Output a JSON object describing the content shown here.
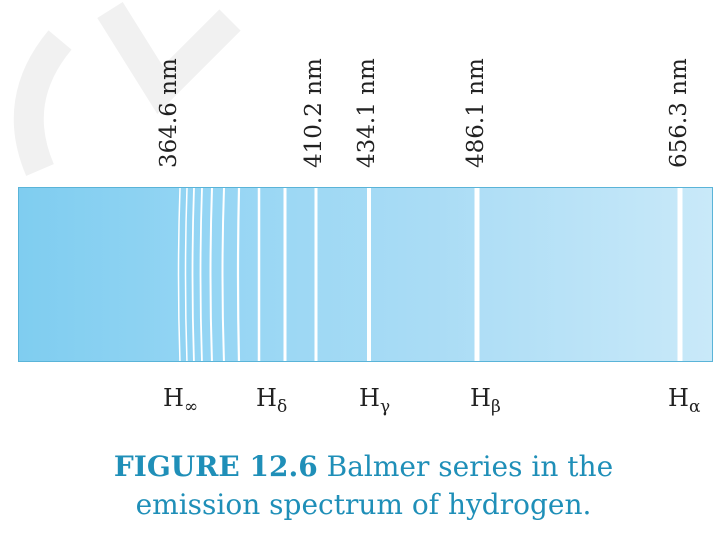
{
  "watermark": {
    "color": "#f1f1f1"
  },
  "wavelengths": [
    "364.6 nm",
    "410.2 nm",
    "434.1 nm",
    "486.1 nm",
    "656.3 nm"
  ],
  "series_labels": [
    {
      "base": "H",
      "sub": "∞"
    },
    {
      "base": "H",
      "sub": "δ"
    },
    {
      "base": "H",
      "sub": "γ"
    },
    {
      "base": "H",
      "sub": "β"
    },
    {
      "base": "H",
      "sub": "α"
    }
  ],
  "spectrum": {
    "line_color": "#ffffff",
    "band_color_start": "#7fcdf0",
    "band_color_end": "#c9e9f9",
    "line_count": 10
  },
  "caption": {
    "figure_label": "FIGURE 12.6",
    "line1": "Balmer series in the",
    "line2": "emission spectrum of hydrogen.",
    "color": "#1f8fb8"
  }
}
